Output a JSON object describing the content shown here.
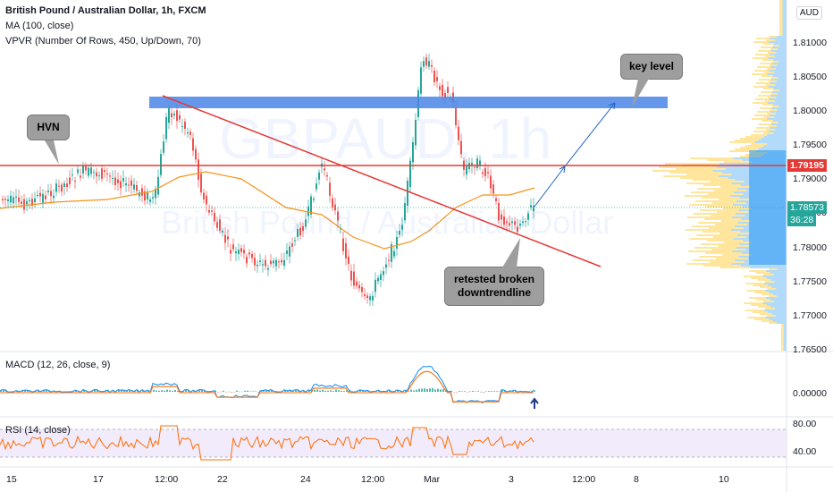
{
  "header": {
    "symbol_title": "British Pound / Australian Dollar, 1h, FXCM",
    "indicator_ma": "MA (100, close)",
    "indicator_vpvr": "VPVR (Number Of Rows, 450, Up/Down, 70)",
    "currency_button": "AUD"
  },
  "watermark": {
    "symbol": "GBPAUD, 1h",
    "name": "British Pound / Australian Dollar"
  },
  "annotations": {
    "hvn": "HVN",
    "key_level": "key level",
    "retest_line1": "retested broken",
    "retest_line2": "downtrendline"
  },
  "price_axis": {
    "ticks": [
      "1.81000",
      "1.80500",
      "1.80000",
      "1.79500",
      "1.79000",
      "1.78500",
      "1.78000",
      "1.77500",
      "1.77000",
      "1.76500"
    ],
    "level_tag": "1.79195",
    "current_tag": "1.78573",
    "countdown": "36:28"
  },
  "macd": {
    "label": "MACD (12, 26, close, 9)",
    "tick": "0.00000"
  },
  "rsi": {
    "label": "RSI (14, close)",
    "ticks": [
      "80.00",
      "40.00"
    ]
  },
  "time_axis": {
    "ticks": [
      "15",
      "17",
      "12:00",
      "22",
      "24",
      "12:00",
      "Mar",
      "3",
      "12:00",
      "8",
      "10"
    ]
  },
  "colors": {
    "up": "#26a69a",
    "down": "#ef5350",
    "ma": "#f7931a",
    "trendline": "#e53935",
    "zone": "#4a86e8",
    "projection": "#1e62c4",
    "vp_up": "#2196f3",
    "vp_down": "#ffc107",
    "macd": "#2196f3",
    "signal": "#ff6d00",
    "rsi": "#ff6d00",
    "rsi_band": "#e9defa"
  }
}
